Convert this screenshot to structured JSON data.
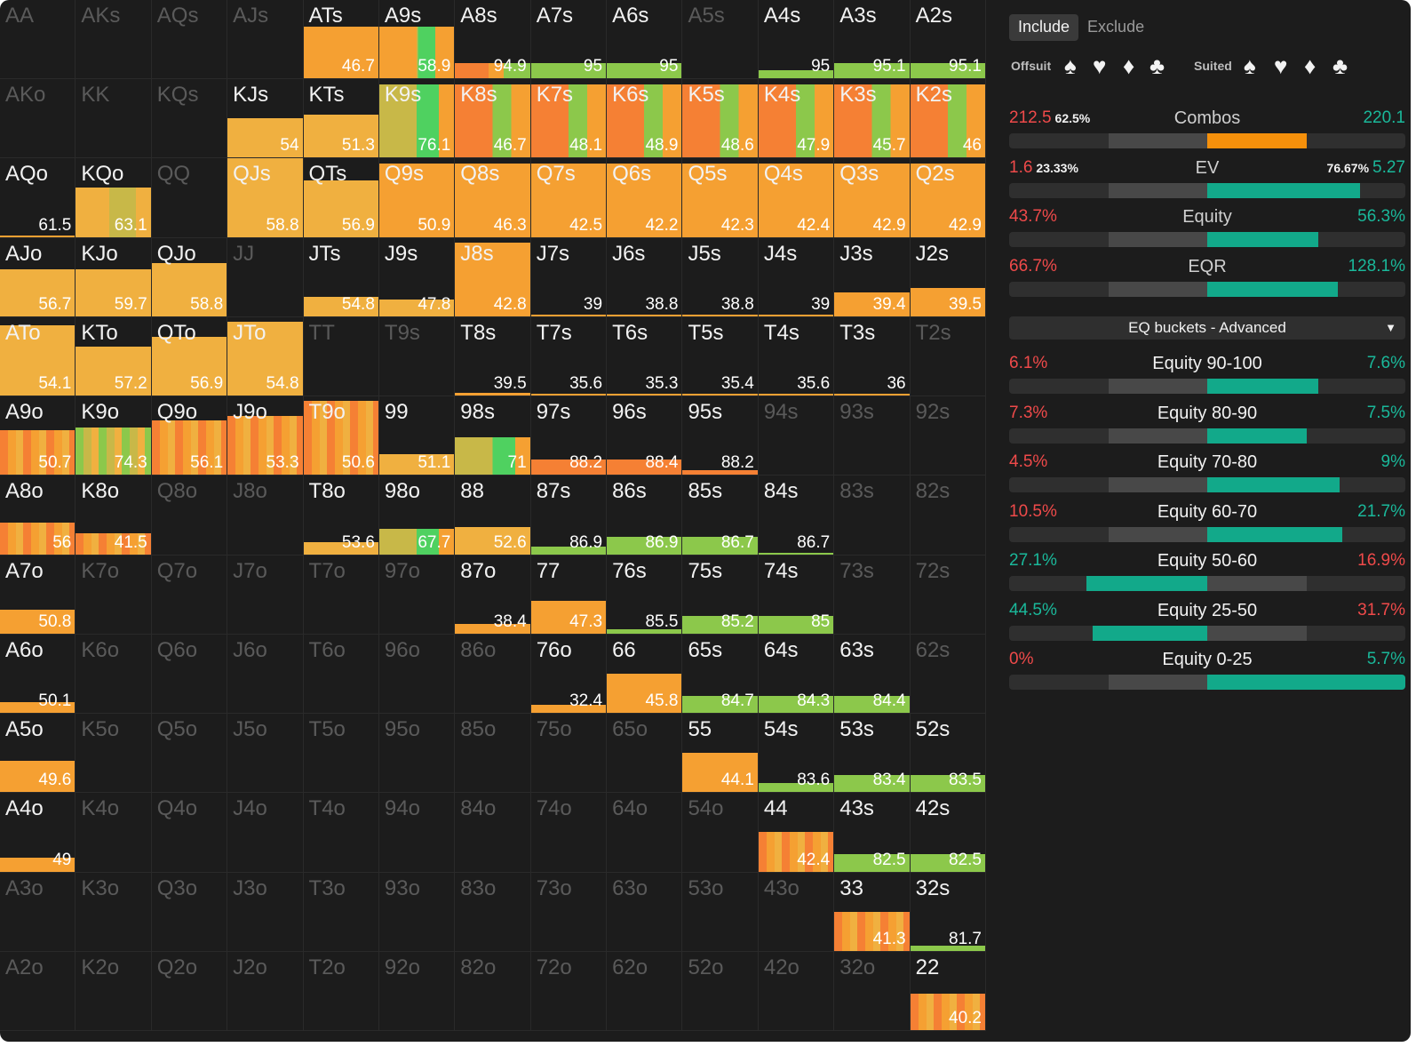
{
  "tabs": {
    "include": "Include",
    "exclude": "Exclude"
  },
  "suits": {
    "offsuit_label": "Offsuit",
    "suited_label": "Suited",
    "offsuit": [
      "♠",
      "♥",
      "♦",
      "♣"
    ],
    "suited": [
      "♠",
      "♥",
      "♦",
      "♣"
    ]
  },
  "stats": [
    {
      "key": "combos",
      "label": "Combos",
      "left": "212.5",
      "left_pct": "62.5%",
      "right": "220.1",
      "right_pct": "",
      "fill_color": "#f5900b",
      "fill_side": "right",
      "fill_frac": 0.5
    },
    {
      "key": "ev",
      "label": "EV",
      "left": "1.6",
      "left_pct": "23.33%",
      "right": "5.27",
      "right_pct": "76.67%",
      "fill_color": "#12a98a",
      "fill_side": "right",
      "fill_frac": 0.77
    },
    {
      "key": "equity",
      "label": "Equity",
      "left": "43.7%",
      "left_pct": "",
      "right": "56.3%",
      "right_pct": "",
      "fill_color": "#12a98a",
      "fill_side": "right",
      "fill_frac": 0.56
    },
    {
      "key": "eqr",
      "label": "EQR",
      "left": "66.7%",
      "left_pct": "",
      "right": "128.1%",
      "right_pct": "",
      "fill_color": "#12a98a",
      "fill_side": "right",
      "fill_frac": 0.66
    }
  ],
  "dropdown": {
    "label": "EQ buckets - Advanced"
  },
  "buckets": [
    {
      "label": "Equity 90-100",
      "left": "6.1%",
      "right": "7.6%",
      "left_color": "#ef4a4a",
      "right_color": "#1ab89a",
      "fill_side": "right",
      "fill_frac": 0.56
    },
    {
      "label": "Equity 80-90",
      "left": "7.3%",
      "right": "7.5%",
      "left_color": "#ef4a4a",
      "right_color": "#1ab89a",
      "fill_side": "right",
      "fill_frac": 0.5
    },
    {
      "label": "Equity 70-80",
      "left": "4.5%",
      "right": "9%",
      "left_color": "#ef4a4a",
      "right_color": "#1ab89a",
      "fill_side": "right",
      "fill_frac": 0.67
    },
    {
      "label": "Equity 60-70",
      "left": "10.5%",
      "right": "21.7%",
      "left_color": "#ef4a4a",
      "right_color": "#1ab89a",
      "fill_side": "right",
      "fill_frac": 0.68
    },
    {
      "label": "Equity 50-60",
      "left": "27.1%",
      "right": "16.9%",
      "left_color": "#1ab89a",
      "right_color": "#ef4a4a",
      "fill_side": "left",
      "fill_frac": 0.61
    },
    {
      "label": "Equity 25-50",
      "left": "44.5%",
      "right": "31.7%",
      "left_color": "#1ab89a",
      "right_color": "#ef4a4a",
      "fill_side": "left",
      "fill_frac": 0.58
    },
    {
      "label": "Equity 0-25",
      "left": "0%",
      "right": "5.7%",
      "left_color": "#ef4a4a",
      "right_color": "#1ab89a",
      "fill_side": "right",
      "fill_frac": 1.0
    }
  ],
  "colors": {
    "orange": "#f5a032",
    "lightorange": "#f0b040",
    "darkorange": "#f58034",
    "green": "#8cc84b",
    "brightgreen": "#4fd160",
    "olive": "#c8b848",
    "teal": "#12a98a",
    "red": "#ef4a4a"
  },
  "grid": [
    [
      "AA",
      "",
      "",
      ""
    ],
    [
      "AKs",
      "",
      "",
      ""
    ],
    [
      "AQs",
      "",
      "",
      ""
    ],
    [
      "AJs",
      "",
      "",
      ""
    ],
    [
      "ATs",
      "46.7",
      "0.66",
      "o"
    ],
    [
      "A9s",
      "58.9",
      "0.66",
      "ogo"
    ],
    [
      "A8s",
      "94.9",
      "0.2",
      "og"
    ],
    [
      "A7s",
      "95",
      "0.2",
      "g"
    ],
    [
      "A6s",
      "95",
      "0.2",
      "g"
    ],
    [
      "A5s",
      "",
      "",
      ""
    ],
    [
      "A4s",
      "95",
      "0.1",
      "g"
    ],
    [
      "A3s",
      "95.1",
      "0.2",
      "g"
    ],
    [
      "A2s",
      "95.1",
      "0.2",
      "g"
    ],
    [
      "AKo",
      "",
      "",
      ""
    ],
    [
      "KK",
      "",
      "",
      ""
    ],
    [
      "KQs",
      "",
      "",
      ""
    ],
    [
      "KJs",
      "54",
      "0.5",
      "lo"
    ],
    [
      "KTs",
      "51.3",
      "0.55",
      "lo"
    ],
    [
      "K9s",
      "76.1",
      "0.94",
      "og2"
    ],
    [
      "K8s",
      "46.7",
      "0.94",
      "dgo"
    ],
    [
      "K7s",
      "48.1",
      "0.94",
      "dgo"
    ],
    [
      "K6s",
      "48.9",
      "0.94",
      "dgo"
    ],
    [
      "K5s",
      "48.6",
      "0.94",
      "dgo"
    ],
    [
      "K4s",
      "47.9",
      "0.94",
      "dgo"
    ],
    [
      "K3s",
      "45.7",
      "0.94",
      "dgo"
    ],
    [
      "K2s",
      "46",
      "0.94",
      "dgo"
    ],
    [
      "AQo",
      "61.5",
      "0.0",
      "o"
    ],
    [
      "KQo",
      "63.1",
      "0.63",
      "lg"
    ],
    [
      "QQ",
      "",
      "",
      ""
    ],
    [
      "QJs",
      "58.8",
      "1.0",
      "lo"
    ],
    [
      "QTs",
      "56.9",
      "0.72",
      "lo"
    ],
    [
      "Q9s",
      "50.9",
      "0.94",
      "o"
    ],
    [
      "Q8s",
      "46.3",
      "0.94",
      "o"
    ],
    [
      "Q7s",
      "42.5",
      "0.94",
      "o"
    ],
    [
      "Q6s",
      "42.2",
      "0.94",
      "o"
    ],
    [
      "Q5s",
      "42.3",
      "0.94",
      "o"
    ],
    [
      "Q4s",
      "42.4",
      "0.94",
      "o"
    ],
    [
      "Q3s",
      "42.9",
      "0.94",
      "o"
    ],
    [
      "Q2s",
      "42.9",
      "0.94",
      "o"
    ],
    [
      "AJo",
      "56.7",
      "0.6",
      "lo"
    ],
    [
      "KJo",
      "59.7",
      "0.6",
      "lo"
    ],
    [
      "QJo",
      "58.8",
      "0.68",
      "lo"
    ],
    [
      "JJ",
      "",
      "",
      ""
    ],
    [
      "JTs",
      "54.8",
      "0.25",
      "lo"
    ],
    [
      "J9s",
      "47.8",
      "0.22",
      "lo"
    ],
    [
      "J8s",
      "42.8",
      "0.94",
      "o"
    ],
    [
      "J7s",
      "39",
      "0.02",
      "o"
    ],
    [
      "J6s",
      "38.8",
      "0.02",
      "o"
    ],
    [
      "J5s",
      "38.8",
      "0.02",
      "o"
    ],
    [
      "J4s",
      "39",
      "0.02",
      "o"
    ],
    [
      "J3s",
      "39.4",
      "0.3",
      "o"
    ],
    [
      "J2s",
      "39.5",
      "0.36",
      "o"
    ],
    [
      "ATo",
      "54.1",
      "0.9",
      "lo"
    ],
    [
      "KTo",
      "57.2",
      "0.63",
      "lo"
    ],
    [
      "QTo",
      "56.9",
      "0.75",
      "lo"
    ],
    [
      "JTo",
      "54.8",
      "0.94",
      "lo"
    ],
    [
      "TT",
      "",
      "",
      ""
    ],
    [
      "T9s",
      "",
      "",
      ""
    ],
    [
      "T8s",
      "39.5",
      "0.04",
      "o"
    ],
    [
      "T7s",
      "35.6",
      "0.0",
      "o"
    ],
    [
      "T6s",
      "35.3",
      "0.0",
      "o"
    ],
    [
      "T5s",
      "35.4",
      "0.0",
      "o"
    ],
    [
      "T4s",
      "35.6",
      "0.0",
      "o"
    ],
    [
      "T3s",
      "36",
      "0.0",
      "o"
    ],
    [
      "T2s",
      "",
      "",
      ""
    ],
    [
      "A9o",
      "50.7",
      "0.57",
      "st"
    ],
    [
      "K9o",
      "74.3",
      "0.6",
      "stg"
    ],
    [
      "Q9o",
      "56.1",
      "0.7",
      "st"
    ],
    [
      "J9o",
      "53.3",
      "0.75",
      "st"
    ],
    [
      "T9o",
      "50.6",
      "0.94",
      "st"
    ],
    [
      "99",
      "51.1",
      "0.27",
      "lo"
    ],
    [
      "98s",
      "71",
      "0.48",
      "og2"
    ],
    [
      "97s",
      "88.2",
      "0.2",
      "do"
    ],
    [
      "96s",
      "88.4",
      "0.2",
      "do"
    ],
    [
      "95s",
      "88.2",
      "0.06",
      "do"
    ],
    [
      "94s",
      "",
      "",
      ""
    ],
    [
      "93s",
      "",
      "",
      ""
    ],
    [
      "92s",
      "",
      "",
      ""
    ],
    [
      "A8o",
      "56",
      "0.4",
      "st"
    ],
    [
      "K8o",
      "41.5",
      "0.27",
      "st"
    ],
    [
      "Q8o",
      "",
      "",
      ""
    ],
    [
      "J8o",
      "",
      "",
      ""
    ],
    [
      "T8o",
      "53.6",
      "0.15",
      "lo"
    ],
    [
      "98o",
      "67.7",
      "0.32",
      "og2"
    ],
    [
      "88",
      "52.6",
      "0.35",
      "lo"
    ],
    [
      "87s",
      "86.9",
      "0.1",
      "g"
    ],
    [
      "86s",
      "86.9",
      "0.22",
      "g"
    ],
    [
      "85s",
      "86.7",
      "0.22",
      "g"
    ],
    [
      "84s",
      "86.7",
      "0.02",
      "g"
    ],
    [
      "83s",
      "",
      "",
      ""
    ],
    [
      "82s",
      "",
      "",
      ""
    ],
    [
      "A7o",
      "50.8",
      "0.3",
      "o"
    ],
    [
      "K7o",
      "",
      "",
      ""
    ],
    [
      "Q7o",
      "",
      "",
      ""
    ],
    [
      "J7o",
      "",
      "",
      ""
    ],
    [
      "T7o",
      "",
      "",
      ""
    ],
    [
      "97o",
      "",
      "",
      ""
    ],
    [
      "87o",
      "38.4",
      "0.12",
      "o"
    ],
    [
      "77",
      "47.3",
      "0.42",
      "o"
    ],
    [
      "76s",
      "85.5",
      "0.06",
      "g"
    ],
    [
      "75s",
      "85.2",
      "0.22",
      "g"
    ],
    [
      "74s",
      "85",
      "0.22",
      "g"
    ],
    [
      "73s",
      "",
      "",
      ""
    ],
    [
      "72s",
      "",
      "",
      ""
    ],
    [
      "A6o",
      "50.1",
      "0.14",
      "o"
    ],
    [
      "K6o",
      "",
      "",
      ""
    ],
    [
      "Q6o",
      "",
      "",
      ""
    ],
    [
      "J6o",
      "",
      "",
      ""
    ],
    [
      "T6o",
      "",
      "",
      ""
    ],
    [
      "96o",
      "",
      "",
      ""
    ],
    [
      "86o",
      "",
      "",
      ""
    ],
    [
      "76o",
      "32.4",
      "0.1",
      "o"
    ],
    [
      "66",
      "45.8",
      "0.5",
      "o"
    ],
    [
      "65s",
      "84.7",
      "0.22",
      "g"
    ],
    [
      "64s",
      "84.3",
      "0.22",
      "g"
    ],
    [
      "63s",
      "84.4",
      "0.22",
      "g"
    ],
    [
      "62s",
      "",
      "",
      ""
    ],
    [
      "A5o",
      "49.6",
      "0.4",
      "o"
    ],
    [
      "K5o",
      "",
      "",
      ""
    ],
    [
      "Q5o",
      "",
      "",
      ""
    ],
    [
      "J5o",
      "",
      "",
      ""
    ],
    [
      "T5o",
      "",
      "",
      ""
    ],
    [
      "95o",
      "",
      "",
      ""
    ],
    [
      "85o",
      "",
      "",
      ""
    ],
    [
      "75o",
      "",
      "",
      ""
    ],
    [
      "65o",
      "",
      "",
      ""
    ],
    [
      "55",
      "44.1",
      "0.5",
      "o"
    ],
    [
      "54s",
      "83.6",
      "0.12",
      "g"
    ],
    [
      "53s",
      "83.4",
      "0.22",
      "g"
    ],
    [
      "52s",
      "83.5",
      "0.22",
      "g"
    ],
    [
      "A4o",
      "49",
      "0.18",
      "o"
    ],
    [
      "K4o",
      "",
      "",
      ""
    ],
    [
      "Q4o",
      "",
      "",
      ""
    ],
    [
      "J4o",
      "",
      "",
      ""
    ],
    [
      "T4o",
      "",
      "",
      ""
    ],
    [
      "94o",
      "",
      "",
      ""
    ],
    [
      "84o",
      "",
      "",
      ""
    ],
    [
      "74o",
      "",
      "",
      ""
    ],
    [
      "64o",
      "",
      "",
      ""
    ],
    [
      "54o",
      "",
      "",
      ""
    ],
    [
      "44",
      "42.4",
      "0.5",
      "st"
    ],
    [
      "43s",
      "82.5",
      "0.22",
      "g"
    ],
    [
      "42s",
      "82.5",
      "0.22",
      "g"
    ],
    [
      "A3o",
      "",
      "",
      ""
    ],
    [
      "K3o",
      "",
      "",
      ""
    ],
    [
      "Q3o",
      "",
      "",
      ""
    ],
    [
      "J3o",
      "",
      "",
      ""
    ],
    [
      "T3o",
      "",
      "",
      ""
    ],
    [
      "93o",
      "",
      "",
      ""
    ],
    [
      "83o",
      "",
      "",
      ""
    ],
    [
      "73o",
      "",
      "",
      ""
    ],
    [
      "63o",
      "",
      "",
      ""
    ],
    [
      "53o",
      "",
      "",
      ""
    ],
    [
      "43o",
      "",
      "",
      ""
    ],
    [
      "33",
      "41.3",
      "0.5",
      "st"
    ],
    [
      "32s",
      "81.7",
      "0.06",
      "g"
    ],
    [
      "A2o",
      "",
      "",
      ""
    ],
    [
      "K2o",
      "",
      "",
      ""
    ],
    [
      "Q2o",
      "",
      "",
      ""
    ],
    [
      "J2o",
      "",
      "",
      ""
    ],
    [
      "T2o",
      "",
      "",
      ""
    ],
    [
      "92o",
      "",
      "",
      ""
    ],
    [
      "82o",
      "",
      "",
      ""
    ],
    [
      "72o",
      "",
      "",
      ""
    ],
    [
      "62o",
      "",
      "",
      ""
    ],
    [
      "52o",
      "",
      "",
      ""
    ],
    [
      "42o",
      "",
      "",
      ""
    ],
    [
      "32o",
      "",
      "",
      ""
    ],
    [
      "22",
      "40.2",
      "0.47",
      "st"
    ]
  ]
}
